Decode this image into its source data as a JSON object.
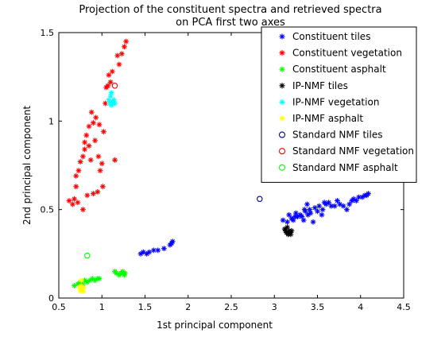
{
  "chart_data": {
    "type": "scatter",
    "title": [
      "Projection of the constituent spectra and retrieved spectra",
      "on PCA first two axes"
    ],
    "xlabel": "1st principal component",
    "ylabel": "2nd principal component",
    "xlim": [
      0.5,
      4.5
    ],
    "ylim": [
      0,
      1.5
    ],
    "xticks": [
      "0.5",
      "1",
      "1.5",
      "2",
      "2.5",
      "3",
      "3.5",
      "4",
      "4.5"
    ],
    "yticks": [
      "0",
      "0.5",
      "1",
      "1.5"
    ],
    "grid": false,
    "legend_position": "top-right",
    "series": [
      {
        "name": "Constituent tiles",
        "marker": "star",
        "color": "#0000ff",
        "points": [
          [
            1.45,
            0.25
          ],
          [
            1.48,
            0.26
          ],
          [
            1.52,
            0.25
          ],
          [
            1.55,
            0.26
          ],
          [
            1.6,
            0.27
          ],
          [
            1.65,
            0.27
          ],
          [
            1.72,
            0.28
          ],
          [
            1.79,
            0.3
          ],
          [
            1.81,
            0.31
          ],
          [
            1.82,
            0.32
          ],
          [
            3.1,
            0.44
          ],
          [
            3.15,
            0.43
          ],
          [
            3.17,
            0.47
          ],
          [
            3.2,
            0.45
          ],
          [
            3.22,
            0.44
          ],
          [
            3.24,
            0.46
          ],
          [
            3.25,
            0.48
          ],
          [
            3.27,
            0.46
          ],
          [
            3.3,
            0.47
          ],
          [
            3.32,
            0.46
          ],
          [
            3.34,
            0.44
          ],
          [
            3.35,
            0.5
          ],
          [
            3.36,
            0.49
          ],
          [
            3.38,
            0.53
          ],
          [
            3.39,
            0.47
          ],
          [
            3.41,
            0.5
          ],
          [
            3.42,
            0.48
          ],
          [
            3.45,
            0.43
          ],
          [
            3.47,
            0.51
          ],
          [
            3.5,
            0.49
          ],
          [
            3.52,
            0.52
          ],
          [
            3.55,
            0.47
          ],
          [
            3.56,
            0.5
          ],
          [
            3.58,
            0.54
          ],
          [
            3.6,
            0.53
          ],
          [
            3.63,
            0.54
          ],
          [
            3.66,
            0.52
          ],
          [
            3.7,
            0.52
          ],
          [
            3.73,
            0.55
          ],
          [
            3.76,
            0.53
          ],
          [
            3.8,
            0.52
          ],
          [
            3.84,
            0.5
          ],
          [
            3.87,
            0.53
          ],
          [
            3.9,
            0.55
          ],
          [
            3.92,
            0.56
          ],
          [
            3.95,
            0.55
          ],
          [
            3.98,
            0.57
          ],
          [
            4.02,
            0.57
          ],
          [
            4.05,
            0.58
          ],
          [
            4.07,
            0.58
          ],
          [
            4.09,
            0.59
          ]
        ]
      },
      {
        "name": "Constituent vegetation",
        "marker": "star",
        "color": "#ff0000",
        "points": [
          [
            0.62,
            0.55
          ],
          [
            0.66,
            0.53
          ],
          [
            0.68,
            0.56
          ],
          [
            0.7,
            0.63
          ],
          [
            0.7,
            0.69
          ],
          [
            0.72,
            0.54
          ],
          [
            0.73,
            0.72
          ],
          [
            0.75,
            0.77
          ],
          [
            0.78,
            0.8
          ],
          [
            0.78,
            0.5
          ],
          [
            0.8,
            0.84
          ],
          [
            0.8,
            0.88
          ],
          [
            0.82,
            0.92
          ],
          [
            0.83,
            0.58
          ],
          [
            0.85,
            0.97
          ],
          [
            0.85,
            0.86
          ],
          [
            0.87,
            0.78
          ],
          [
            0.88,
            1.05
          ],
          [
            0.9,
            0.59
          ],
          [
            0.9,
            0.99
          ],
          [
            0.92,
            0.89
          ],
          [
            0.93,
            1.02
          ],
          [
            0.95,
            0.6
          ],
          [
            0.96,
            0.8
          ],
          [
            0.97,
            0.98
          ],
          [
            0.98,
            0.72
          ],
          [
            1.0,
            0.76
          ],
          [
            1.01,
            0.63
          ],
          [
            1.02,
            0.94
          ],
          [
            1.04,
            1.1
          ],
          [
            1.05,
            1.19
          ],
          [
            1.07,
            1.2
          ],
          [
            1.08,
            1.26
          ],
          [
            1.1,
            1.22
          ],
          [
            1.12,
            1.28
          ],
          [
            1.15,
            0.78
          ],
          [
            1.18,
            1.37
          ],
          [
            1.2,
            1.32
          ],
          [
            1.23,
            1.38
          ],
          [
            1.26,
            1.42
          ],
          [
            1.28,
            1.45
          ]
        ]
      },
      {
        "name": "Constituent asphalt",
        "marker": "star",
        "color": "#00ff00",
        "points": [
          [
            0.68,
            0.07
          ],
          [
            0.72,
            0.08
          ],
          [
            0.75,
            0.09
          ],
          [
            0.78,
            0.08
          ],
          [
            0.8,
            0.1
          ],
          [
            0.83,
            0.09
          ],
          [
            0.86,
            0.1
          ],
          [
            0.89,
            0.11
          ],
          [
            0.92,
            0.1
          ],
          [
            0.95,
            0.11
          ],
          [
            0.97,
            0.11
          ],
          [
            1.15,
            0.15
          ],
          [
            1.17,
            0.14
          ],
          [
            1.2,
            0.13
          ],
          [
            1.22,
            0.14
          ],
          [
            1.24,
            0.15
          ],
          [
            1.26,
            0.13
          ],
          [
            1.27,
            0.14
          ]
        ]
      },
      {
        "name": "IP-NMF tiles",
        "marker": "star",
        "color": "#000000",
        "points": [
          [
            3.12,
            0.39
          ],
          [
            3.13,
            0.38
          ],
          [
            3.14,
            0.37
          ],
          [
            3.15,
            0.4
          ],
          [
            3.16,
            0.36
          ],
          [
            3.17,
            0.38
          ],
          [
            3.18,
            0.37
          ],
          [
            3.19,
            0.36
          ],
          [
            3.2,
            0.38
          ]
        ]
      },
      {
        "name": "IP-NMF vegetation",
        "marker": "star",
        "color": "#00ffff",
        "points": [
          [
            1.08,
            1.12
          ],
          [
            1.09,
            1.1
          ],
          [
            1.1,
            1.14
          ],
          [
            1.11,
            1.09
          ],
          [
            1.12,
            1.11
          ],
          [
            1.13,
            1.1
          ],
          [
            1.14,
            1.12
          ],
          [
            1.15,
            1.1
          ],
          [
            1.11,
            1.16
          ]
        ]
      },
      {
        "name": "IP-NMF asphalt",
        "marker": "star",
        "color": "#ffff00",
        "points": [
          [
            0.74,
            0.06
          ],
          [
            0.75,
            0.04
          ],
          [
            0.76,
            0.07
          ],
          [
            0.77,
            0.05
          ],
          [
            0.78,
            0.04
          ],
          [
            0.79,
            0.06
          ],
          [
            0.76,
            0.1
          ]
        ]
      },
      {
        "name": "Standard NMF tiles",
        "marker": "circle",
        "color": "#00008b",
        "points": [
          [
            2.83,
            0.56
          ]
        ]
      },
      {
        "name": "Standard NMF vegetation",
        "marker": "circle",
        "color": "#ff0000",
        "points": [
          [
            1.15,
            1.2
          ]
        ]
      },
      {
        "name": "Standard NMF asphalt",
        "marker": "circle",
        "color": "#00ff00",
        "points": [
          [
            0.83,
            0.24
          ]
        ]
      }
    ]
  }
}
